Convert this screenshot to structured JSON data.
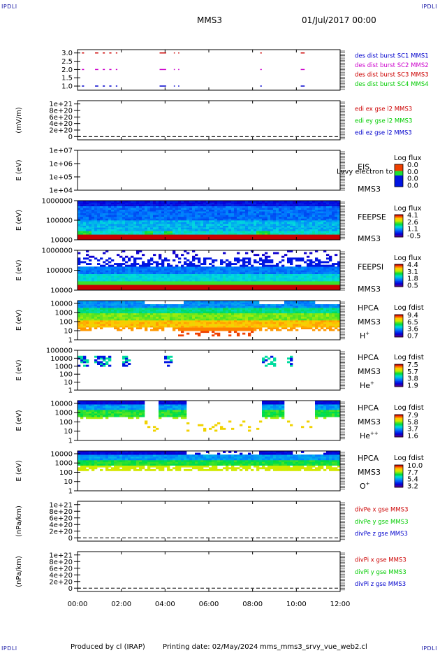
{
  "header": {
    "corner_label": "IPDLI",
    "title": "MMS3",
    "date": "01/Jul/2017 00:00"
  },
  "footer": {
    "produced": "Produced by cl (IRAP)",
    "printing": "Printing date: 02/May/2024",
    "script": "mms_mms3_srvy_vue_web2.cl"
  },
  "time_axis": {
    "ticks": [
      "00:00",
      "02:00",
      "04:00",
      "06:00",
      "08:00",
      "10:00",
      "12:00"
    ],
    "range_hours": [
      0,
      12
    ]
  },
  "colors": {
    "red": "#cc0000",
    "magenta": "#cc00cc",
    "green": "#00cc00",
    "blue": "#0000cc"
  },
  "chart_data": [
    {
      "type": "line",
      "name": "burst",
      "ylabel": "",
      "yticks": [
        "3.0",
        "2.5",
        "2.0",
        "1.5",
        "1.0"
      ],
      "ytick_values": [
        3.0,
        2.5,
        2.0,
        1.5,
        1.0
      ],
      "ylim": [
        0.75,
        3.2
      ],
      "legend": [
        {
          "name": "des dist burst SC1 MMS1",
          "color": "#0000cc"
        },
        {
          "name": "des dist burst SC2 MMS2",
          "color": "#cc00cc"
        },
        {
          "name": "des dist burst SC3 MMS3",
          "color": "#cc0000"
        },
        {
          "name": "des dist burst SC4 MMS4",
          "color": "#00cc00"
        }
      ],
      "segments": [
        {
          "y": 3.0,
          "color": "#cc0000",
          "intervals": [
            [
              0.2,
              0.3
            ],
            [
              0.8,
              0.95
            ],
            [
              1.15,
              1.25
            ],
            [
              1.45,
              1.55
            ],
            [
              1.75,
              1.82
            ],
            [
              3.75,
              4.05
            ],
            [
              4.4,
              4.45
            ],
            [
              4.6,
              4.65
            ],
            [
              8.35,
              8.42
            ],
            [
              10.2,
              10.38
            ]
          ]
        },
        {
          "y": 2.0,
          "color": "#cc00cc",
          "intervals": [
            [
              0.2,
              0.3
            ],
            [
              0.8,
              0.95
            ],
            [
              1.15,
              1.25
            ],
            [
              1.45,
              1.55
            ],
            [
              1.75,
              1.82
            ],
            [
              3.75,
              4.05
            ],
            [
              4.4,
              4.45
            ],
            [
              4.6,
              4.65
            ],
            [
              8.35,
              8.42
            ],
            [
              10.2,
              10.38
            ]
          ]
        },
        {
          "y": 1.0,
          "color": "#0000cc",
          "intervals": [
            [
              0.2,
              0.3
            ],
            [
              0.8,
              0.95
            ],
            [
              1.15,
              1.25
            ],
            [
              1.45,
              1.55
            ],
            [
              1.75,
              1.82
            ],
            [
              3.75,
              4.05
            ],
            [
              4.4,
              4.45
            ],
            [
              4.6,
              4.65
            ],
            [
              8.35,
              8.42
            ],
            [
              10.2,
              10.38
            ]
          ]
        }
      ]
    },
    {
      "type": "line",
      "name": "edi",
      "ylabel": "(mV/m)",
      "yticks": [
        "1e+21",
        "8e+20",
        "6e+20",
        "4e+20",
        "2e+20",
        "0"
      ],
      "ytick_values": [
        1e+21,
        8e+20,
        6e+20,
        4e+20,
        2e+20,
        0
      ],
      "ylim": [
        -1e+20,
        1.1e+21
      ],
      "zero_line": true,
      "legend": [
        {
          "name": "edi ex gse l2 MMS3",
          "color": "#cc0000"
        },
        {
          "name": "edi ey gse l2 MMS3",
          "color": "#00cc00"
        },
        {
          "name": "edi ez gse l2 MMS3",
          "color": "#0000cc"
        }
      ]
    },
    {
      "type": "heatmap",
      "name": "eis",
      "ylabel": "E (eV)",
      "yticks": [
        "1e+07",
        "1e+06",
        "1e+05",
        "1e+04"
      ],
      "ytick_values": [
        7,
        6,
        5,
        4
      ],
      "ylim": [
        4,
        7
      ],
      "instrument": "EIS",
      "species": "",
      "overlay_text": "Lvvy electron to",
      "spacecraft": "MMS3",
      "colorbar_title": "Log flux",
      "colorbar_ticks": [
        "0.0",
        "0.0",
        "0.0",
        "0.0"
      ],
      "fill": "none"
    },
    {
      "type": "heatmap",
      "name": "feepse",
      "ylabel": "E (eV)",
      "yticks": [
        "1000000",
        "100000",
        "10000"
      ],
      "ytick_values": [
        6,
        5,
        4
      ],
      "ylim": [
        4,
        6
      ],
      "instrument": "FEEPSE",
      "species": "",
      "spacecraft": "MMS3",
      "colorbar_title": "Log flux",
      "colorbar_ticks": [
        "4.1",
        "2.6",
        "1.1",
        "-0.5"
      ],
      "fill": "feeps_e"
    },
    {
      "type": "heatmap",
      "name": "feepsi",
      "ylabel": "E (eV)",
      "yticks": [
        "1000000",
        "100000",
        "10000"
      ],
      "ytick_values": [
        6,
        5,
        4
      ],
      "ylim": [
        4,
        6
      ],
      "instrument": "FEEPSI",
      "species": "",
      "spacecraft": "MMS3",
      "colorbar_title": "Log flux",
      "colorbar_ticks": [
        "4.4",
        "3.1",
        "1.8",
        "0.5"
      ],
      "fill": "feeps_i"
    },
    {
      "type": "heatmap",
      "name": "hpca-h",
      "ylabel": "E (eV)",
      "yticks": [
        "10000",
        "1000",
        "100",
        "10",
        "1"
      ],
      "ytick_values": [
        4,
        3,
        2,
        1,
        0
      ],
      "ylim": [
        0,
        4.3
      ],
      "instrument": "HPCA",
      "species": "H+",
      "species_base": "H",
      "species_sup": "+",
      "spacecraft": "MMS3",
      "colorbar_title": "Log fdist",
      "colorbar_ticks": [
        "9.4",
        "6.5",
        "3.6",
        "0.7"
      ],
      "fill": "hpca_h"
    },
    {
      "type": "heatmap",
      "name": "hpca-he",
      "ylabel": "E (eV)",
      "yticks": [
        "100000",
        "10000",
        "1000",
        "100",
        "10",
        "1"
      ],
      "ytick_values": [
        5,
        4,
        3,
        2,
        1,
        0
      ],
      "ylim": [
        0,
        5
      ],
      "instrument": "HPCA",
      "species": "He+",
      "species_base": "He",
      "species_sup": "+",
      "spacecraft": "MMS3",
      "colorbar_title": "Log fdist",
      "colorbar_ticks": [
        "7.5",
        "5.7",
        "3.8",
        "1.9"
      ],
      "fill": "hpca_he"
    },
    {
      "type": "heatmap",
      "name": "hpca-hepp",
      "ylabel": "E (eV)",
      "yticks": [
        "10000",
        "1000",
        "100",
        "10",
        "1"
      ],
      "ytick_values": [
        4,
        3,
        2,
        1,
        0
      ],
      "ylim": [
        0,
        4.3
      ],
      "instrument": "HPCA",
      "species": "He++",
      "species_base": "He",
      "species_sup": "++",
      "spacecraft": "MMS3",
      "colorbar_title": "Log fdist",
      "colorbar_ticks": [
        "7.9",
        "5.8",
        "3.7",
        "1.6"
      ],
      "fill": "hpca_hepp"
    },
    {
      "type": "heatmap",
      "name": "hpca-o",
      "ylabel": "E (eV)",
      "yticks": [
        "10000",
        "1000",
        "100",
        "10",
        "1"
      ],
      "ytick_values": [
        4,
        3,
        2,
        1,
        0
      ],
      "ylim": [
        0,
        4.3
      ],
      "instrument": "HPCA",
      "species": "O+",
      "species_base": "O",
      "species_sup": "+",
      "spacecraft": "MMS3",
      "colorbar_title": "Log fdist",
      "colorbar_ticks": [
        "10.0",
        "7.7",
        "5.4",
        "3.2"
      ],
      "fill": "hpca_o"
    },
    {
      "type": "line",
      "name": "divpe",
      "ylabel": "(nPa/km)",
      "yticks": [
        "1e+21",
        "8e+20",
        "6e+20",
        "4e+20",
        "2e+20",
        "0"
      ],
      "ytick_values": [
        1e+21,
        8e+20,
        6e+20,
        4e+20,
        2e+20,
        0
      ],
      "ylim": [
        -1e+20,
        1.1e+21
      ],
      "zero_line": true,
      "legend": [
        {
          "name": "divPe x gse MMS3",
          "color": "#cc0000"
        },
        {
          "name": "divPe y gse MMS3",
          "color": "#00cc00"
        },
        {
          "name": "divPe z gse MMS3",
          "color": "#0000cc"
        }
      ]
    },
    {
      "type": "line",
      "name": "divpi",
      "ylabel": "(nPa/km)",
      "yticks": [
        "1e+21",
        "8e+20",
        "6e+20",
        "4e+20",
        "2e+20",
        "0"
      ],
      "ytick_values": [
        1e+21,
        8e+20,
        6e+20,
        4e+20,
        2e+20,
        0
      ],
      "ylim": [
        -1e+20,
        1.1e+21
      ],
      "zero_line": true,
      "legend": [
        {
          "name": "divPi x gse MMS3",
          "color": "#cc0000"
        },
        {
          "name": "divPi y gse MMS3",
          "color": "#00cc00"
        },
        {
          "name": "divPi z gse MMS3",
          "color": "#0000cc"
        }
      ]
    }
  ]
}
